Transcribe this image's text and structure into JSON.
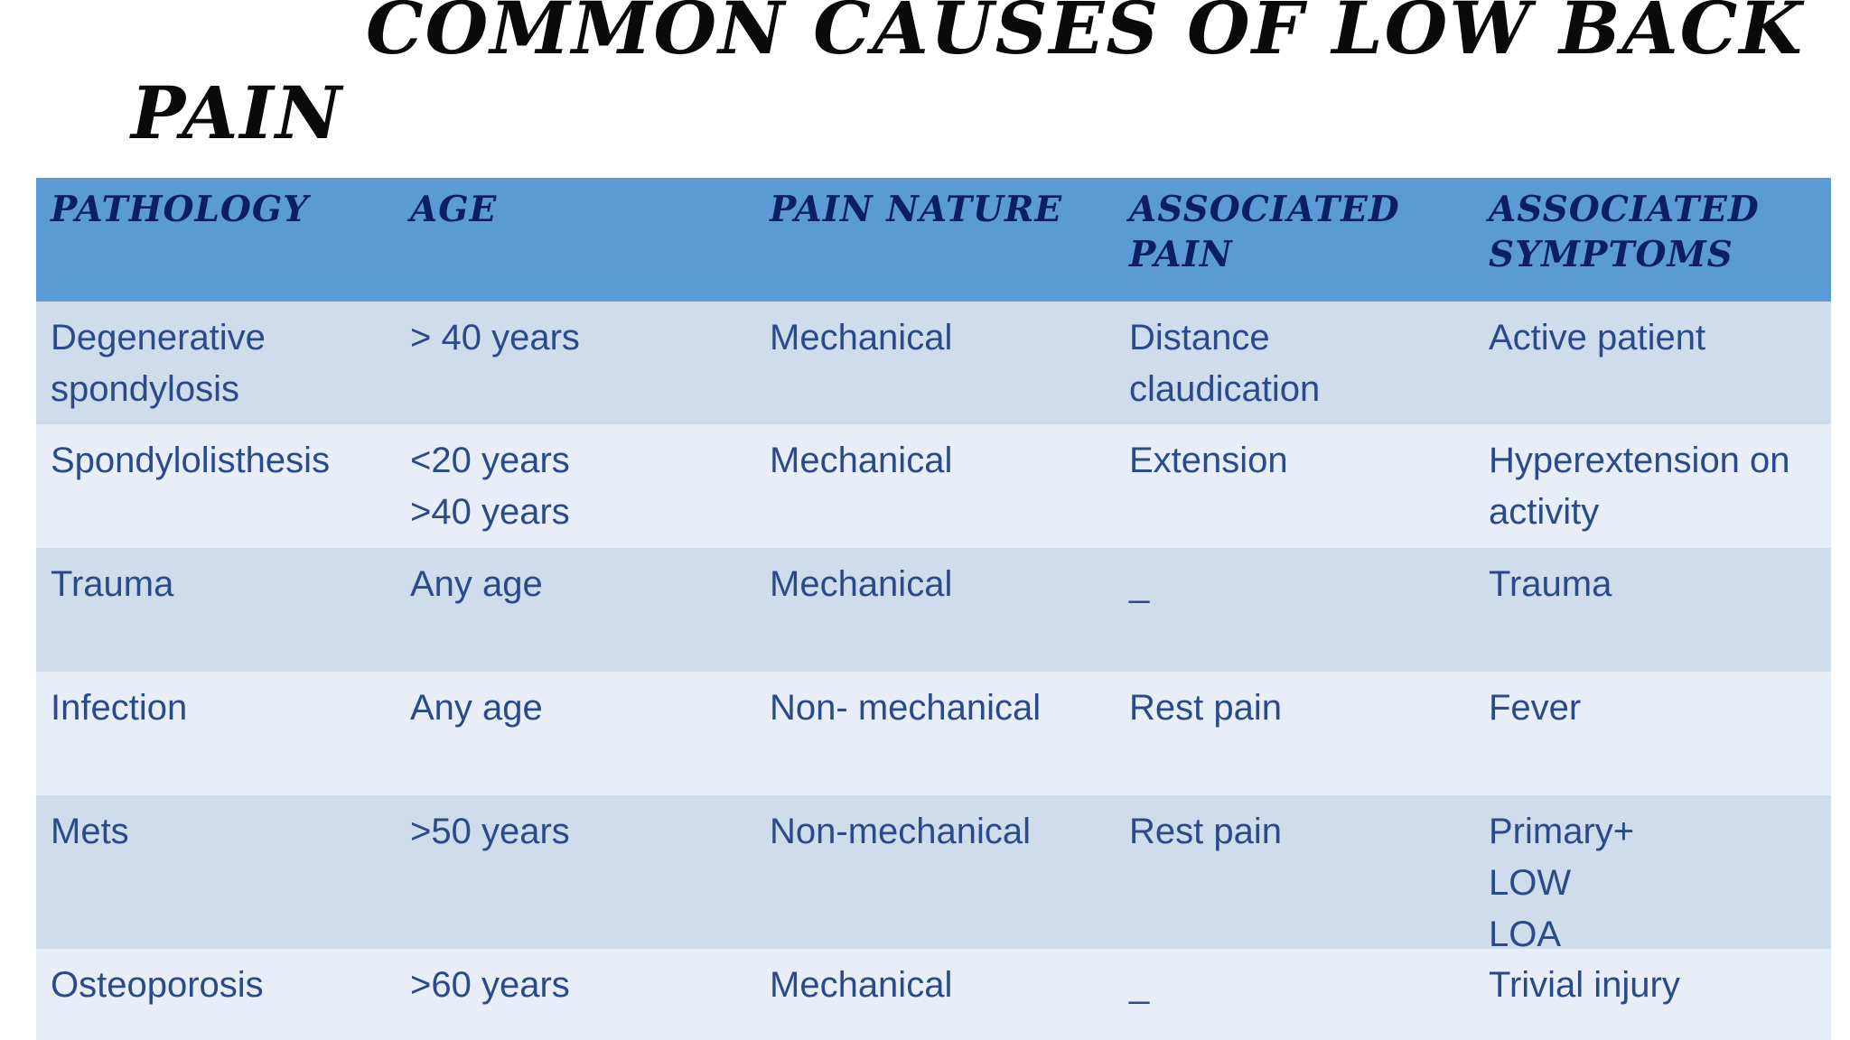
{
  "title": {
    "line1": "COMMON CAUSES OF LOW BACK",
    "line2": "PAIN"
  },
  "table": {
    "headers": [
      [
        "PATHOLOGY"
      ],
      [
        "AGE"
      ],
      [
        "PAIN NATURE"
      ],
      [
        "ASSOCIATED",
        "PAIN"
      ],
      [
        "ASSOCIATED",
        "SYMPTOMS"
      ]
    ],
    "rows": [
      [
        [
          "Degenerative",
          "spondylosis"
        ],
        [
          "> 40 years"
        ],
        [
          "Mechanical"
        ],
        [
          "Distance",
          "claudication"
        ],
        [
          "Active patient"
        ]
      ],
      [
        [
          "Spondylolisthesis"
        ],
        [
          "<20 years",
          ">40 years"
        ],
        [
          "Mechanical"
        ],
        [
          "Extension"
        ],
        [
          "Hyperextension on",
          "activity"
        ]
      ],
      [
        [
          "Trauma"
        ],
        [
          "Any age"
        ],
        [
          "Mechanical"
        ],
        [
          "_"
        ],
        [
          "Trauma"
        ]
      ],
      [
        [
          "Infection"
        ],
        [
          "Any age"
        ],
        [
          "Non- mechanical"
        ],
        [
          "Rest pain"
        ],
        [
          "Fever"
        ]
      ],
      [
        [
          "Mets"
        ],
        [
          ">50 years"
        ],
        [
          "Non-mechanical"
        ],
        [
          "Rest pain"
        ],
        [
          "Primary+",
          "LOW",
          "LOA"
        ]
      ],
      [
        [
          "Osteoporosis"
        ],
        [
          ">60 years"
        ],
        [
          "Mechanical"
        ],
        [
          "_"
        ],
        [
          "Trivial injury"
        ]
      ]
    ]
  },
  "colors": {
    "header_bg": "#5b9bd5",
    "header_text": "#0b1f63",
    "row_odd_bg": "#cfdcec",
    "row_even_bg": "#e8eef7",
    "cell_text": "#2b4a8a"
  }
}
